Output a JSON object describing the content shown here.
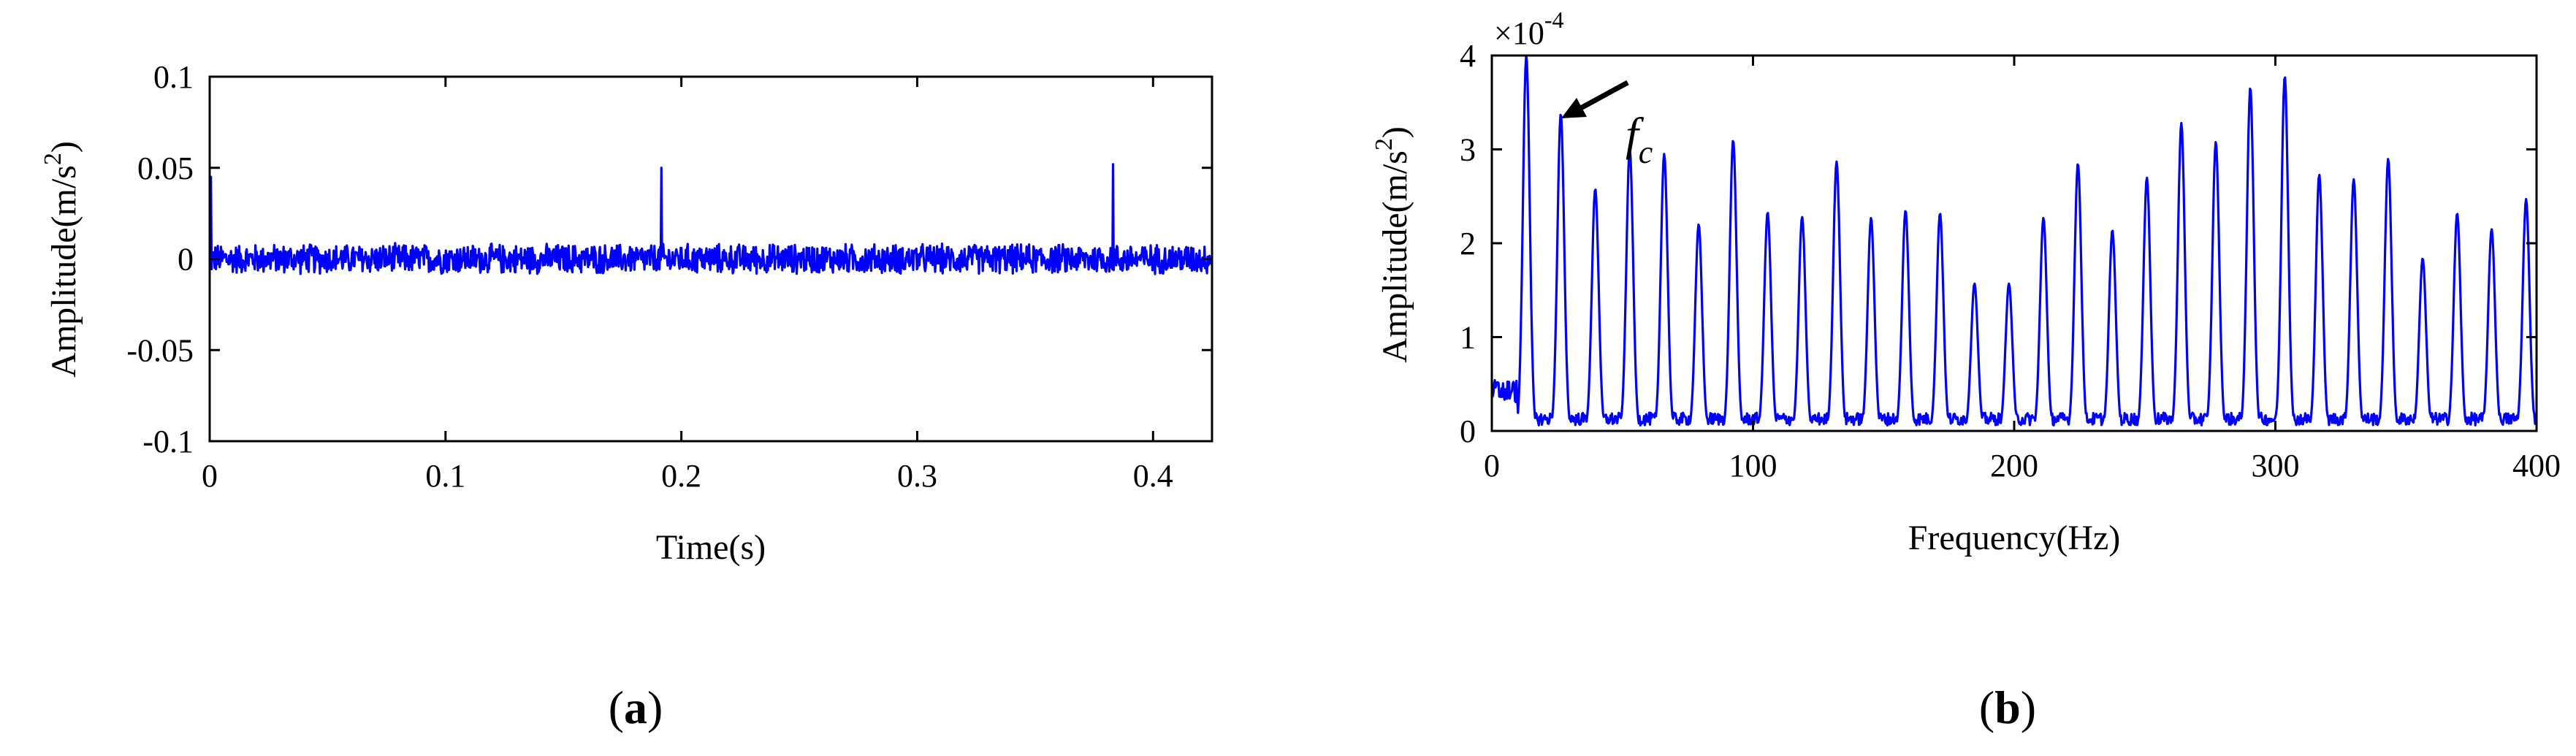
{
  "chart_data": [
    {
      "type": "line",
      "panel_label_open": "(",
      "panel_label_letter": "a",
      "panel_label_close": ")",
      "xlabel": "Time(s)",
      "ylabel_main": "Amplitude(m/s",
      "ylabel_sup": "2",
      "ylabel_end": ")",
      "xlim": [
        0,
        0.425
      ],
      "ylim": [
        -0.1,
        0.1
      ],
      "xticks": [
        0,
        0.1,
        0.2,
        0.3,
        0.4
      ],
      "xtick_labels": [
        "0",
        "0.1",
        "0.2",
        "0.3",
        "0.4"
      ],
      "yticks": [
        -0.1,
        -0.05,
        0,
        0.05,
        0.1
      ],
      "ytick_labels": [
        "-0.1",
        "-0.05",
        "0",
        "0.05",
        "0.1"
      ],
      "grid": false,
      "series_color": "#0000ff",
      "series": [
        {
          "noise_amplitude": 0.009,
          "impulses": [
            {
              "x": 0.0005,
              "y": 0.045
            },
            {
              "x": 0.1915,
              "y": 0.05
            },
            {
              "x": 0.383,
              "y": 0.052
            }
          ]
        }
      ]
    },
    {
      "type": "line",
      "panel_label_open": "(",
      "panel_label_letter": "b",
      "panel_label_close": ")",
      "xlabel": "Frequency(Hz)",
      "ylabel_main": "Amplitude(m/s",
      "ylabel_sup": "2",
      "ylabel_end": ")",
      "xlim": [
        0,
        400
      ],
      "ylim": [
        0,
        4
      ],
      "xticks": [
        0,
        100,
        200,
        300,
        400
      ],
      "xtick_labels": [
        "0",
        "100",
        "200",
        "300",
        "400"
      ],
      "yticks": [
        0,
        1,
        2,
        3,
        4
      ],
      "ytick_labels": [
        "0",
        "1",
        "2",
        "3",
        "4"
      ],
      "scale_multiplier": {
        "base": "×10",
        "exponent": "-4"
      },
      "annotation": {
        "text": "f",
        "subscript": "c"
      },
      "grid": false,
      "series_color": "#0000ff",
      "series": [
        {
          "peaks": [
            {
              "x": 13.2,
              "y": 4.0
            },
            {
              "x": 26.4,
              "y": 3.38
            },
            {
              "x": 39.6,
              "y": 2.58
            },
            {
              "x": 52.8,
              "y": 3.0
            },
            {
              "x": 66.0,
              "y": 2.95
            },
            {
              "x": 79.2,
              "y": 2.2
            },
            {
              "x": 92.4,
              "y": 3.1
            },
            {
              "x": 105.6,
              "y": 2.33
            },
            {
              "x": 118.8,
              "y": 2.28
            },
            {
              "x": 132.0,
              "y": 2.87
            },
            {
              "x": 145.2,
              "y": 2.27
            },
            {
              "x": 158.4,
              "y": 2.35
            },
            {
              "x": 171.6,
              "y": 2.32
            },
            {
              "x": 184.8,
              "y": 1.57
            },
            {
              "x": 198.0,
              "y": 1.57
            },
            {
              "x": 211.2,
              "y": 2.27
            },
            {
              "x": 224.4,
              "y": 2.85
            },
            {
              "x": 237.6,
              "y": 2.14
            },
            {
              "x": 250.8,
              "y": 2.7
            },
            {
              "x": 264.0,
              "y": 3.28
            },
            {
              "x": 277.2,
              "y": 3.08
            },
            {
              "x": 290.4,
              "y": 3.66
            },
            {
              "x": 303.6,
              "y": 3.78
            },
            {
              "x": 316.8,
              "y": 2.73
            },
            {
              "x": 330.0,
              "y": 2.68
            },
            {
              "x": 343.2,
              "y": 2.9
            },
            {
              "x": 356.4,
              "y": 1.84
            },
            {
              "x": 369.6,
              "y": 2.32
            },
            {
              "x": 382.8,
              "y": 2.15
            },
            {
              "x": 396.0,
              "y": 2.47
            }
          ],
          "baseline": 0.15
        }
      ]
    }
  ]
}
